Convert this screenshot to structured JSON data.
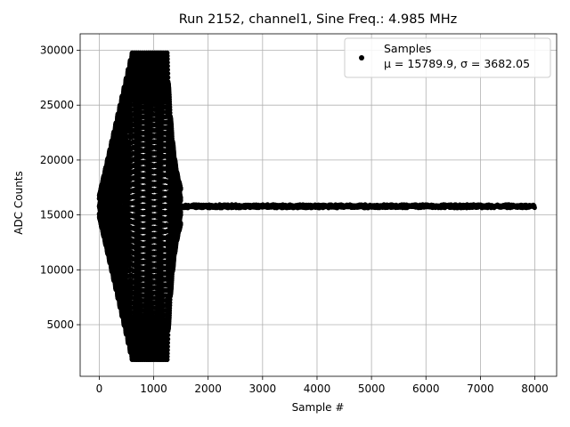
{
  "chart_data": {
    "type": "scatter",
    "title": "Run 2152, channel1, Sine Freq.: 4.985 MHz",
    "xlabel": "Sample #",
    "ylabel": "ADC Counts",
    "xlim": [
      -350,
      8400
    ],
    "ylim": [
      300,
      31500
    ],
    "xticks": [
      0,
      1000,
      2000,
      3000,
      4000,
      5000,
      6000,
      7000,
      8000
    ],
    "yticks": [
      5000,
      10000,
      15000,
      20000,
      25000,
      30000
    ],
    "grid": true,
    "legend_position": "top-right",
    "marker_color": "#000000",
    "series": [
      {
        "name": "Samples",
        "stats_label": "μ = 15789.9, σ = 3682.05",
        "mean": 15789.9,
        "std": 3682.05,
        "total_samples": 8000,
        "baseline": 15789.9,
        "oscillation": {
          "start": 0,
          "grow_end": 600,
          "flat_end": 1250,
          "decay_end": 1750,
          "amplitude": 13980,
          "envelope_period_samples": 1210,
          "crossings_per_envelope": 4
        }
      }
    ]
  }
}
